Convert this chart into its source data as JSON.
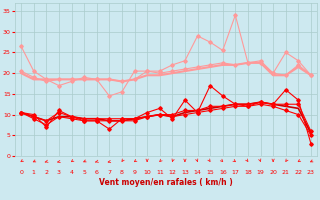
{
  "x": [
    0,
    1,
    2,
    3,
    4,
    5,
    6,
    7,
    8,
    9,
    10,
    11,
    12,
    13,
    14,
    15,
    16,
    17,
    18,
    19,
    20,
    21,
    22,
    23
  ],
  "series": [
    {
      "color": "#ff9999",
      "linewidth": 0.8,
      "marker": "D",
      "markersize": 1.8,
      "values": [
        26.5,
        20.5,
        18.5,
        17.0,
        18.0,
        19.0,
        18.5,
        14.5,
        15.5,
        20.5,
        20.5,
        20.5,
        22.0,
        23.0,
        29.0,
        27.5,
        25.5,
        34.0,
        22.5,
        23.0,
        20.0,
        25.0,
        23.0,
        19.5
      ]
    },
    {
      "color": "#ff9999",
      "linewidth": 0.8,
      "marker": "D",
      "markersize": 1.8,
      "values": [
        20.5,
        19.0,
        18.0,
        18.5,
        18.5,
        18.5,
        18.5,
        18.5,
        18.0,
        18.5,
        20.5,
        20.0,
        20.5,
        21.0,
        21.5,
        22.0,
        22.5,
        22.0,
        22.5,
        22.5,
        20.0,
        19.5,
        22.0,
        19.5
      ]
    },
    {
      "color": "#ff9999",
      "linewidth": 1.5,
      "marker": null,
      "markersize": 0,
      "values": [
        20.0,
        18.5,
        18.5,
        18.5,
        18.5,
        18.5,
        18.5,
        18.5,
        18.0,
        18.5,
        19.5,
        19.5,
        20.0,
        20.5,
        21.0,
        21.5,
        22.0,
        22.0,
        22.5,
        22.5,
        19.5,
        19.5,
        21.5,
        19.5
      ]
    },
    {
      "color": "#ff0000",
      "linewidth": 0.8,
      "marker": "D",
      "markersize": 1.8,
      "values": [
        10.5,
        10.0,
        7.0,
        11.0,
        9.5,
        8.5,
        8.5,
        6.5,
        9.0,
        9.0,
        10.5,
        11.5,
        9.0,
        13.5,
        10.5,
        17.0,
        14.5,
        12.5,
        12.0,
        13.0,
        12.5,
        16.0,
        13.5,
        3.0
      ]
    },
    {
      "color": "#ff0000",
      "linewidth": 0.8,
      "marker": "D",
      "markersize": 1.8,
      "values": [
        10.5,
        9.5,
        8.5,
        10.5,
        9.5,
        9.0,
        9.0,
        9.0,
        9.0,
        9.0,
        9.5,
        10.0,
        10.0,
        11.0,
        11.0,
        12.0,
        12.0,
        12.5,
        12.5,
        13.0,
        12.5,
        12.5,
        12.5,
        6.0
      ]
    },
    {
      "color": "#ff0000",
      "linewidth": 0.8,
      "marker": "D",
      "markersize": 1.8,
      "values": [
        10.5,
        9.0,
        7.5,
        9.5,
        9.0,
        8.5,
        8.5,
        8.5,
        8.5,
        8.5,
        9.5,
        10.0,
        9.5,
        10.0,
        10.5,
        11.0,
        11.5,
        12.0,
        12.0,
        12.5,
        12.0,
        11.0,
        10.0,
        5.0
      ]
    },
    {
      "color": "#cc0000",
      "linewidth": 1.2,
      "marker": null,
      "markersize": 0,
      "values": [
        10.5,
        9.5,
        8.5,
        9.5,
        9.5,
        9.0,
        9.0,
        8.5,
        8.5,
        9.0,
        9.5,
        10.0,
        9.5,
        10.5,
        11.0,
        11.5,
        12.0,
        12.5,
        12.5,
        13.0,
        12.5,
        12.0,
        11.5,
        5.5
      ]
    }
  ],
  "xlim": [
    -0.5,
    23.5
  ],
  "ylim": [
    0,
    37
  ],
  "yticks": [
    0,
    5,
    10,
    15,
    20,
    25,
    30,
    35
  ],
  "xticks": [
    0,
    1,
    2,
    3,
    4,
    5,
    6,
    7,
    8,
    9,
    10,
    11,
    12,
    13,
    14,
    15,
    16,
    17,
    18,
    19,
    20,
    21,
    22,
    23
  ],
  "xlabel": "Vent moyen/en rafales ( km/h )",
  "background_color": "#cde9f0",
  "grid_color": "#aacccc",
  "tick_color": "#ff0000",
  "label_color": "#cc0000",
  "arrow_color": "#ff2222",
  "wind_angles_deg": [
    200,
    210,
    220,
    230,
    200,
    210,
    220,
    230,
    190,
    200,
    180,
    195,
    185,
    180,
    175,
    170,
    165,
    160,
    170,
    175,
    180,
    190,
    200,
    210
  ]
}
